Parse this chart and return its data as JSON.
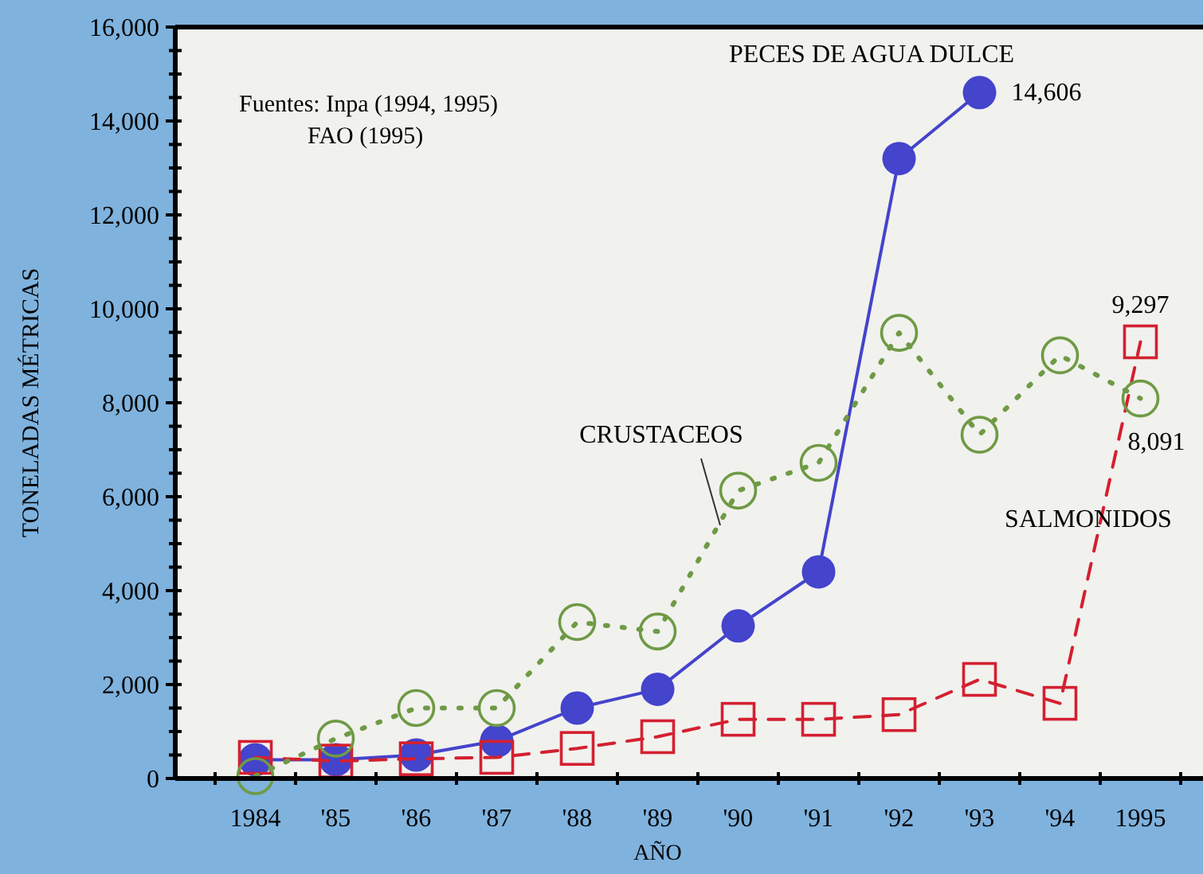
{
  "chart_data": {
    "type": "line",
    "xlabel": "AÑO",
    "ylabel": "TONELADAS MÉTRICAS",
    "categories": [
      "1984",
      "'85",
      "'86",
      "'87",
      "'88",
      "'89",
      "'90",
      "'91",
      "'92",
      "'93",
      "'94",
      "1995"
    ],
    "ylim": [
      0,
      16000
    ],
    "yticks": [
      {
        "value": 0,
        "label": "0"
      },
      {
        "value": 500,
        "label": null
      },
      {
        "value": 1000,
        "label": null
      },
      {
        "value": 1500,
        "label": null
      },
      {
        "value": 2000,
        "label": "2,000"
      },
      {
        "value": 2500,
        "label": null
      },
      {
        "value": 3000,
        "label": null
      },
      {
        "value": 3500,
        "label": null
      },
      {
        "value": 4000,
        "label": "4,000"
      },
      {
        "value": 4500,
        "label": null
      },
      {
        "value": 5000,
        "label": null
      },
      {
        "value": 5500,
        "label": null
      },
      {
        "value": 6000,
        "label": "6,000"
      },
      {
        "value": 6500,
        "label": null
      },
      {
        "value": 7000,
        "label": null
      },
      {
        "value": 7500,
        "label": null
      },
      {
        "value": 8000,
        "label": "8,000"
      },
      {
        "value": 8500,
        "label": null
      },
      {
        "value": 9000,
        "label": null
      },
      {
        "value": 9500,
        "label": null
      },
      {
        "value": 10000,
        "label": "10,000"
      },
      {
        "value": 10500,
        "label": null
      },
      {
        "value": 11000,
        "label": null
      },
      {
        "value": 11500,
        "label": null
      },
      {
        "value": 12000,
        "label": "12,000"
      },
      {
        "value": 12500,
        "label": null
      },
      {
        "value": 13000,
        "label": null
      },
      {
        "value": 13500,
        "label": null
      },
      {
        "value": 14000,
        "label": "14,000"
      },
      {
        "value": 14500,
        "label": null
      },
      {
        "value": 15000,
        "label": null
      },
      {
        "value": 15500,
        "label": null
      },
      {
        "value": 16000,
        "label": "16,000"
      }
    ],
    "grid": false,
    "annotations": [
      "Fuentes: Inpa (1994, 1995)",
      "FAO (1995)"
    ],
    "series": [
      {
        "name": "CRUSTACEOS",
        "color": "#6f9a45",
        "marker": "circle",
        "line_style": "dotted",
        "values": [
          50,
          850,
          1500,
          1500,
          3330,
          3130,
          6130,
          6720,
          9490,
          7320,
          9010,
          8091
        ],
        "value_labels": [
          null,
          null,
          null,
          null,
          null,
          null,
          null,
          null,
          null,
          null,
          null,
          "8,091"
        ]
      },
      {
        "name": "PECES DE AGUA DULCE",
        "color": "#4444cc",
        "marker": "circle",
        "line_style": "solid",
        "values": [
          400,
          400,
          500,
          800,
          1500,
          1900,
          3250,
          4400,
          13200,
          14606,
          null,
          null
        ],
        "value_labels": [
          null,
          null,
          null,
          null,
          null,
          null,
          null,
          null,
          null,
          "14,606",
          null,
          null
        ]
      },
      {
        "name": "SALMONIDOS",
        "color": "#d42030",
        "marker": "square",
        "line_style": "dashed",
        "values": [
          450,
          370,
          420,
          450,
          640,
          890,
          1260,
          1260,
          1360,
          2110,
          1600,
          9297
        ],
        "value_labels": [
          null,
          null,
          null,
          null,
          null,
          null,
          null,
          null,
          null,
          null,
          null,
          "9,297"
        ]
      }
    ]
  }
}
